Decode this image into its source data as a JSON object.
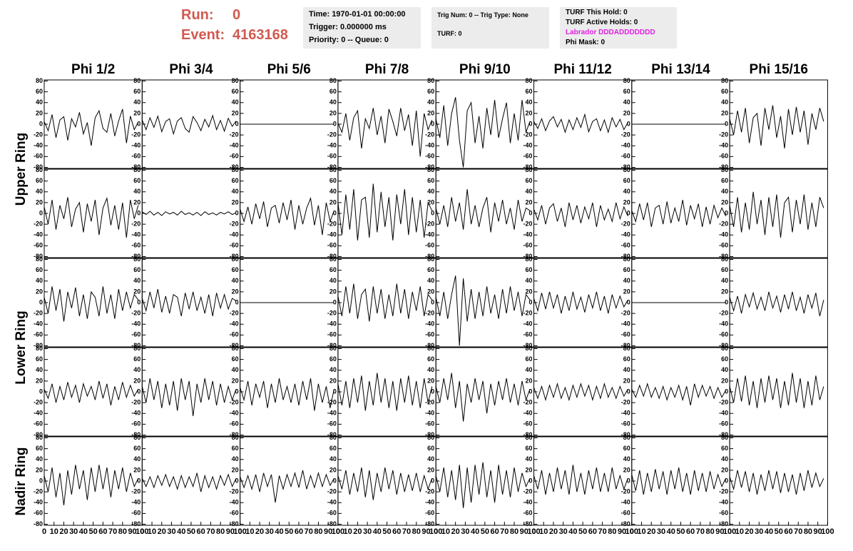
{
  "header": {
    "run_label": "Run:",
    "run": "0",
    "event_label": "Event:",
    "event": "4163168",
    "box1": [
      "Time: 1970-01-01 00:00:00",
      "Trigger: 0.000000 ms",
      "Priority: 0 -- Queue: 0"
    ],
    "box2": [
      "Trig Num: 0 -- Trig Type: None",
      "TURF: 0"
    ],
    "box3": [
      "TURF This Hold: 0",
      "TURF Active Holds: 0",
      "Labrador DDDADDDDDDD",
      "Phi Mask: 0"
    ]
  },
  "chart_data": {
    "type": "line",
    "columns": [
      "Phi 1/2",
      "Phi 3/4",
      "Phi 5/6",
      "Phi 7/8",
      "Phi 9/10",
      "Phi 11/12",
      "Phi 13/14",
      "Phi 15/16"
    ],
    "row_groups": [
      "Upper Ring",
      "Lower Ring",
      "Nadir Ring"
    ],
    "color": "#000000",
    "xlim": [
      0,
      100
    ],
    "xticks": [
      0,
      10,
      20,
      30,
      40,
      50,
      60,
      70,
      80,
      90,
      100
    ],
    "ylim": [
      -82,
      82
    ],
    "yticks": [
      -80,
      -60,
      -40,
      -20,
      0,
      20,
      40,
      60,
      80
    ],
    "x": [
      0,
      4,
      8,
      12,
      16,
      20,
      24,
      28,
      32,
      36,
      40,
      44,
      48,
      52,
      56,
      60,
      64,
      68,
      72,
      76,
      80,
      84,
      88,
      92,
      96
    ],
    "panels": [
      [
        [
          5,
          -12,
          18,
          -25,
          8,
          14,
          -30,
          10,
          -5,
          22,
          -18,
          3,
          -40,
          12,
          25,
          -8,
          -15,
          20,
          -22,
          6,
          28,
          -35,
          15,
          -10,
          4
        ],
        [
          8,
          -10,
          12,
          -6,
          15,
          -14,
          5,
          10,
          -18,
          6,
          12,
          -8,
          -15,
          14,
          3,
          -12,
          9,
          -5,
          16,
          -10,
          7,
          -13,
          11,
          -4,
          6
        ],
        [
          0,
          0,
          0,
          0,
          0,
          0,
          0,
          0,
          0,
          0,
          0,
          0,
          0,
          0,
          0,
          0,
          0,
          0,
          0,
          0,
          0,
          0,
          0,
          0,
          0
        ],
        [
          2,
          -15,
          20,
          -30,
          12,
          25,
          -45,
          10,
          -8,
          30,
          -20,
          15,
          -35,
          28,
          5,
          -22,
          30,
          -12,
          18,
          -40,
          25,
          -60,
          20,
          -10,
          8
        ],
        [
          10,
          -25,
          35,
          -40,
          20,
          50,
          -30,
          -80,
          25,
          40,
          -35,
          15,
          -45,
          30,
          -20,
          45,
          -25,
          10,
          40,
          -35,
          20,
          -30,
          45,
          -15,
          5
        ],
        [
          5,
          -8,
          10,
          -12,
          6,
          14,
          -5,
          9,
          -15,
          8,
          -10,
          12,
          -6,
          18,
          -14,
          5,
          10,
          -12,
          8,
          -15,
          12,
          -5,
          9,
          -10,
          3
        ],
        [
          0,
          0,
          0,
          0,
          0,
          0,
          0,
          0,
          0,
          0,
          0,
          0,
          0,
          0,
          0,
          0,
          0,
          0,
          0,
          0,
          0,
          0,
          0,
          0,
          0
        ],
        [
          10,
          -20,
          25,
          -15,
          30,
          -35,
          12,
          20,
          -40,
          30,
          -10,
          35,
          -25,
          15,
          -45,
          28,
          -20,
          32,
          -15,
          25,
          -38,
          20,
          -10,
          30,
          5
        ]
      ],
      [
        [
          12,
          -20,
          25,
          -30,
          15,
          -10,
          30,
          -25,
          8,
          20,
          -35,
          18,
          -15,
          25,
          -40,
          10,
          28,
          -22,
          15,
          -30,
          20,
          -45,
          25,
          -10,
          15
        ],
        [
          3,
          -2,
          4,
          -3,
          2,
          -4,
          3,
          -1,
          2,
          -3,
          4,
          -2,
          1,
          -3,
          2,
          -4,
          3,
          -2,
          1,
          -3,
          2,
          -1,
          3,
          -2,
          1
        ],
        [
          8,
          -15,
          12,
          -20,
          18,
          -10,
          22,
          -25,
          10,
          15,
          -18,
          20,
          -12,
          25,
          -30,
          15,
          -20,
          10,
          28,
          -22,
          15,
          -40,
          20,
          -15,
          5
        ],
        [
          20,
          -40,
          35,
          -30,
          45,
          -50,
          25,
          30,
          -45,
          55,
          -35,
          40,
          -25,
          30,
          -50,
          35,
          -20,
          45,
          -40,
          30,
          -35,
          25,
          -45,
          20,
          5
        ],
        [
          10,
          -20,
          15,
          -25,
          30,
          -15,
          20,
          -30,
          45,
          -20,
          15,
          -25,
          10,
          30,
          -35,
          20,
          -15,
          25,
          -20,
          10,
          -30,
          25,
          -15,
          10,
          5
        ],
        [
          8,
          -12,
          15,
          -20,
          10,
          18,
          -15,
          10,
          -25,
          20,
          -12,
          15,
          -18,
          12,
          -10,
          20,
          -25,
          15,
          -12,
          8,
          -15,
          20,
          -10,
          12,
          -5
        ],
        [
          5,
          -15,
          18,
          -12,
          20,
          -25,
          10,
          15,
          -20,
          22,
          -18,
          10,
          -15,
          25,
          -22,
          15,
          -10,
          18,
          -25,
          12,
          -20,
          15,
          -8,
          10,
          -5
        ],
        [
          15,
          -25,
          30,
          -35,
          20,
          -30,
          40,
          -20,
          25,
          -40,
          30,
          -25,
          35,
          -45,
          20,
          30,
          -35,
          25,
          -20,
          35,
          -30,
          20,
          -25,
          30,
          10
        ]
      ],
      [
        [
          10,
          -20,
          30,
          -15,
          25,
          -35,
          20,
          -10,
          28,
          -25,
          15,
          -30,
          20,
          10,
          -25,
          30,
          -20,
          15,
          -30,
          25,
          -15,
          20,
          -10,
          15,
          5
        ],
        [
          8,
          -15,
          20,
          -10,
          25,
          -18,
          12,
          -20,
          15,
          10,
          -25,
          18,
          -12,
          20,
          -15,
          10,
          -20,
          15,
          -25,
          18,
          -10,
          15,
          -12,
          8,
          3
        ],
        [
          0,
          0,
          0,
          0,
          0,
          0,
          0,
          0,
          0,
          0,
          0,
          0,
          0,
          0,
          0,
          0,
          0,
          0,
          0,
          0,
          0,
          0,
          0,
          0,
          0
        ],
        [
          12,
          -25,
          30,
          -20,
          35,
          -30,
          15,
          25,
          -35,
          30,
          -20,
          25,
          -30,
          15,
          -25,
          35,
          -20,
          25,
          -30,
          20,
          -15,
          30,
          -25,
          15,
          5
        ],
        [
          10,
          -25,
          20,
          -30,
          15,
          50,
          -80,
          45,
          -35,
          25,
          -30,
          20,
          -25,
          30,
          -20,
          15,
          -30,
          25,
          -20,
          30,
          -15,
          20,
          -25,
          15,
          5
        ],
        [
          8,
          -15,
          18,
          -12,
          20,
          -10,
          15,
          -20,
          12,
          -15,
          20,
          -12,
          10,
          -18,
          15,
          -10,
          20,
          -15,
          12,
          -20,
          15,
          -10,
          12,
          -8,
          5
        ],
        [
          0,
          0,
          0,
          0,
          0,
          0,
          0,
          0,
          0,
          0,
          0,
          0,
          0,
          0,
          0,
          0,
          0,
          0,
          0,
          0,
          0,
          0,
          0,
          0,
          0
        ],
        [
          10,
          -15,
          12,
          -20,
          15,
          -8,
          18,
          -12,
          10,
          -15,
          20,
          -10,
          12,
          -18,
          15,
          -12,
          20,
          -15,
          10,
          -20,
          15,
          -10,
          18,
          -25,
          5
        ]
      ],
      [
        [
          5,
          -12,
          15,
          -20,
          10,
          -15,
          18,
          -10,
          12,
          -20,
          15,
          -8,
          10,
          -15,
          20,
          -12,
          15,
          -25,
          10,
          -15,
          18,
          -10,
          12,
          -8,
          5
        ],
        [
          10,
          -20,
          25,
          -15,
          20,
          -30,
          15,
          -25,
          20,
          -35,
          25,
          -15,
          20,
          -45,
          15,
          -20,
          25,
          -15,
          20,
          -25,
          15,
          -20,
          10,
          -15,
          5
        ],
        [
          8,
          -15,
          20,
          -25,
          15,
          -10,
          20,
          -30,
          15,
          -20,
          25,
          -15,
          10,
          -20,
          15,
          -25,
          20,
          -15,
          25,
          -35,
          15,
          -20,
          10,
          -30,
          5
        ],
        [
          15,
          -25,
          20,
          -30,
          25,
          -20,
          30,
          -35,
          20,
          -25,
          35,
          -20,
          25,
          -30,
          20,
          -35,
          25,
          -20,
          30,
          -25,
          20,
          -30,
          25,
          -20,
          10
        ],
        [
          10,
          -20,
          25,
          -15,
          35,
          -30,
          20,
          -55,
          15,
          -20,
          25,
          -15,
          20,
          -40,
          15,
          -25,
          20,
          -15,
          25,
          -20,
          15,
          -25,
          20,
          -15,
          5
        ],
        [
          8,
          -12,
          10,
          -15,
          12,
          -10,
          15,
          -12,
          8,
          -15,
          12,
          -10,
          15,
          -8,
          12,
          -15,
          10,
          -12,
          15,
          -10,
          8,
          -12,
          10,
          -8,
          5
        ],
        [
          5,
          -10,
          12,
          -8,
          15,
          -10,
          8,
          -12,
          10,
          -15,
          8,
          -10,
          12,
          -15,
          10,
          -25,
          15,
          -10,
          12,
          -8,
          10,
          -12,
          8,
          -10,
          3
        ],
        [
          10,
          -20,
          25,
          -18,
          30,
          -25,
          20,
          -30,
          25,
          -20,
          30,
          -15,
          25,
          -30,
          20,
          -25,
          35,
          -20,
          25,
          -30,
          20,
          -25,
          30,
          -15,
          10
        ]
      ],
      [
        [
          10,
          -20,
          25,
          -30,
          15,
          -45,
          20,
          -25,
          30,
          -15,
          20,
          -35,
          25,
          -20,
          30,
          -15,
          25,
          -30,
          20,
          -15,
          25,
          -20,
          15,
          -10,
          5
        ],
        [
          5,
          -10,
          8,
          -12,
          10,
          -8,
          12,
          -10,
          8,
          -15,
          10,
          -12,
          8,
          -10,
          15,
          -20,
          10,
          -12,
          8,
          -15,
          10,
          -8,
          12,
          -10,
          5
        ],
        [
          8,
          -12,
          10,
          -15,
          12,
          -20,
          15,
          -10,
          12,
          -40,
          10,
          -15,
          12,
          -10,
          15,
          -12,
          20,
          -15,
          10,
          -12,
          15,
          -10,
          12,
          -8,
          5
        ],
        [
          10,
          -15,
          20,
          -25,
          15,
          -20,
          25,
          -30,
          20,
          -35,
          15,
          -20,
          25,
          -15,
          20,
          -25,
          15,
          -20,
          12,
          -18,
          15,
          -20,
          10,
          -15,
          5
        ],
        [
          10,
          -20,
          25,
          -30,
          20,
          -35,
          30,
          -50,
          25,
          -40,
          30,
          -25,
          35,
          -30,
          20,
          -40,
          30,
          -25,
          20,
          -30,
          25,
          -20,
          15,
          -10,
          5
        ],
        [
          10,
          -15,
          20,
          -25,
          15,
          -20,
          25,
          -15,
          20,
          -25,
          30,
          -20,
          15,
          -25,
          20,
          -15,
          25,
          -20,
          15,
          -20,
          25,
          -15,
          10,
          -15,
          5
        ],
        [
          12,
          -18,
          20,
          -25,
          15,
          -20,
          22,
          -15,
          18,
          -25,
          20,
          -15,
          25,
          -20,
          15,
          -25,
          20,
          -18,
          15,
          -20,
          18,
          -15,
          12,
          -10,
          5
        ],
        [
          8,
          -15,
          20,
          -12,
          18,
          -20,
          15,
          -25,
          12,
          -18,
          20,
          -15,
          18,
          -22,
          15,
          -20,
          12,
          -25,
          15,
          -18,
          20,
          -12,
          15,
          -10,
          5
        ]
      ]
    ]
  }
}
